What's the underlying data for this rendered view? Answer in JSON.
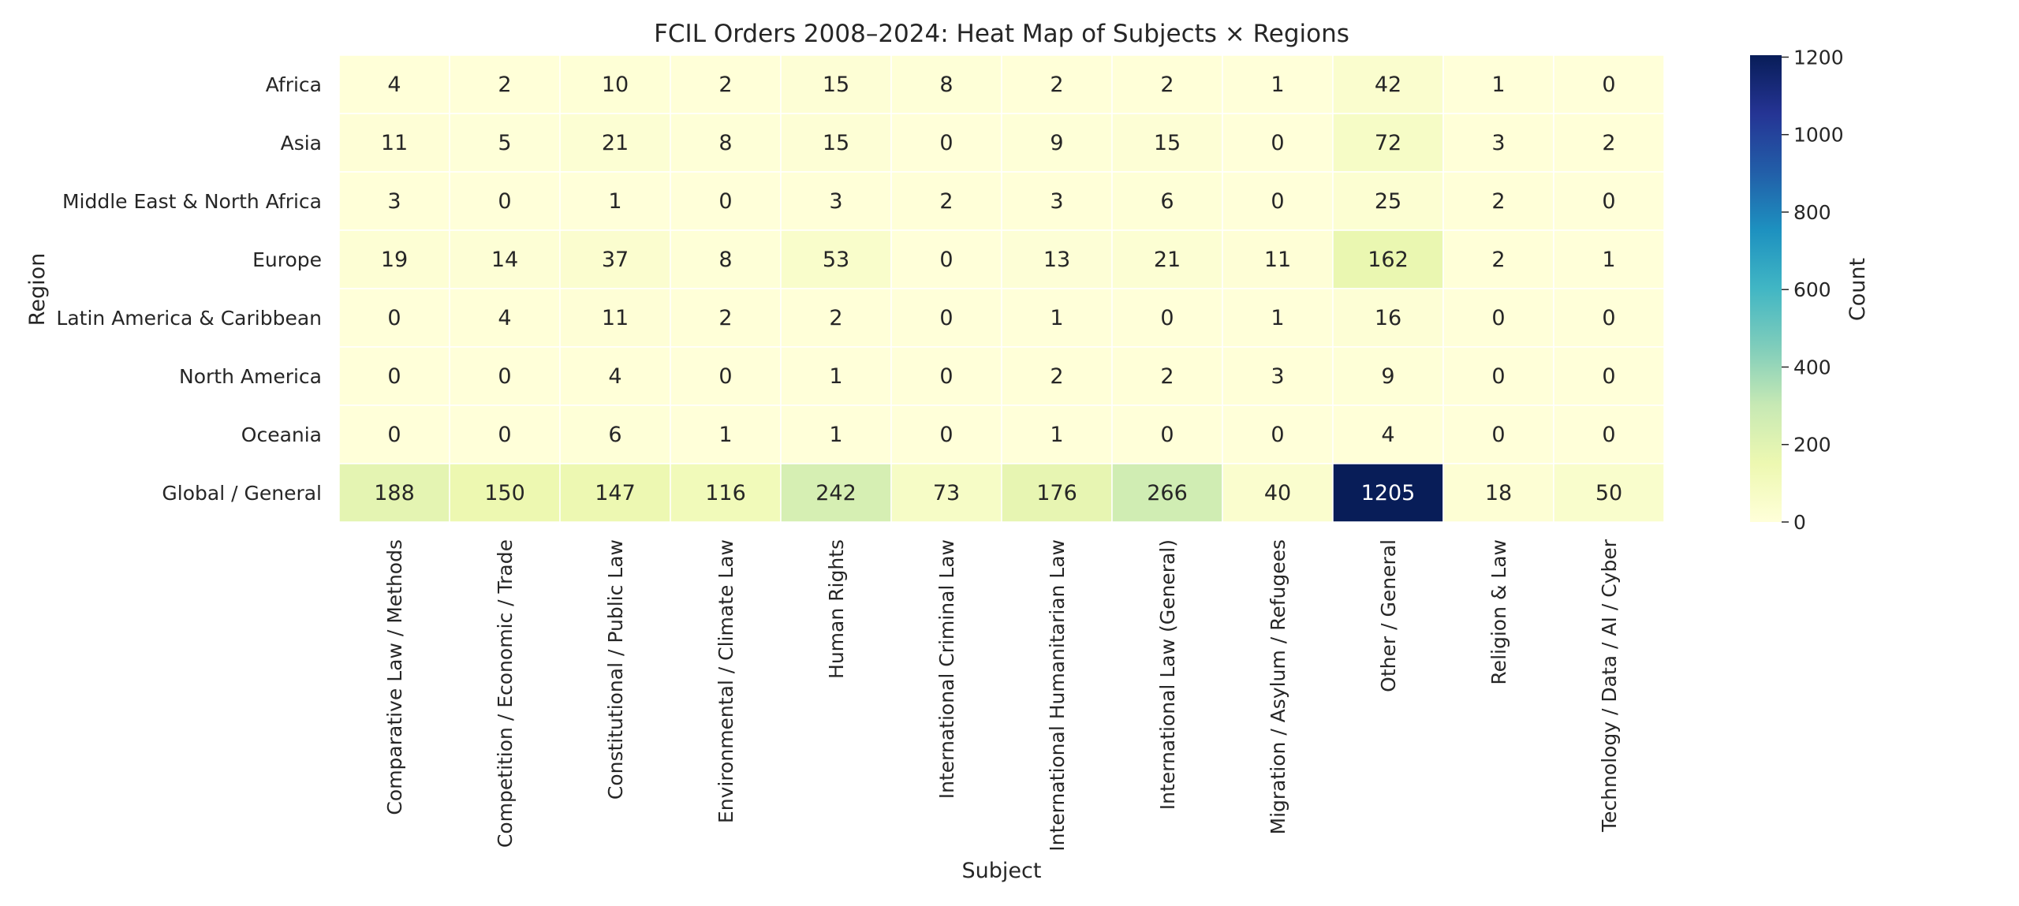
{
  "chart_data": {
    "type": "heatmap",
    "title": "FCIL Orders 2008–2024: Heat Map of Subjects × Regions",
    "xlabel": "Subject",
    "ylabel": "Region",
    "colorbar_label": "Count",
    "colorbar_ticks": [
      0,
      200,
      400,
      600,
      800,
      1000,
      1200
    ],
    "vrange": [
      0,
      1205
    ],
    "colormap": "YlGnBu",
    "x_categories": [
      "Comparative Law / Methods",
      "Competition / Economic / Trade",
      "Constitutional / Public Law",
      "Environmental / Climate Law",
      "Human Rights",
      "International Criminal Law",
      "International Humanitarian Law",
      "International Law (General)",
      "Migration / Asylum / Refugees",
      "Other / General",
      "Religion & Law",
      "Technology / Data / AI / Cyber"
    ],
    "y_categories": [
      "Africa",
      "Asia",
      "Middle East & North Africa",
      "Europe",
      "Latin America & Caribbean",
      "North America",
      "Oceania",
      "Global / General"
    ],
    "values": [
      [
        4,
        2,
        10,
        2,
        15,
        8,
        2,
        2,
        1,
        42,
        1,
        0
      ],
      [
        11,
        5,
        21,
        8,
        15,
        0,
        9,
        15,
        0,
        72,
        3,
        2
      ],
      [
        3,
        0,
        1,
        0,
        3,
        2,
        3,
        6,
        0,
        25,
        2,
        0
      ],
      [
        19,
        14,
        37,
        8,
        53,
        0,
        13,
        21,
        11,
        162,
        2,
        1
      ],
      [
        0,
        4,
        11,
        2,
        2,
        0,
        1,
        0,
        1,
        16,
        0,
        0
      ],
      [
        0,
        0,
        4,
        0,
        1,
        0,
        2,
        2,
        3,
        9,
        0,
        0
      ],
      [
        0,
        0,
        6,
        1,
        1,
        0,
        1,
        0,
        0,
        4,
        0,
        0
      ],
      [
        188,
        150,
        147,
        116,
        242,
        73,
        176,
        266,
        40,
        1205,
        18,
        50
      ]
    ]
  }
}
